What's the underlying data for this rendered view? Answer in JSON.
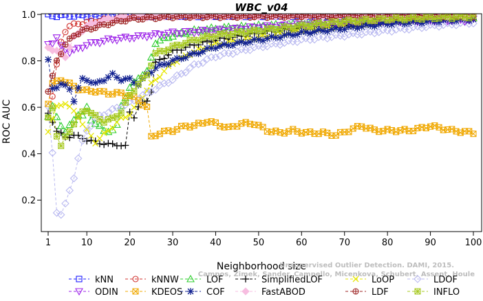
{
  "chart_data": {
    "type": "line",
    "title": "WBC_v04",
    "xlabel": "Neighborhood size",
    "ylabel": "ROC AUC",
    "xlim": [
      1,
      100
    ],
    "ylim": [
      0.1,
      1.0
    ],
    "xticks": [
      1,
      10,
      20,
      30,
      40,
      50,
      60,
      70,
      80,
      90,
      100
    ],
    "yticks": [
      0.2,
      0.4,
      0.6,
      0.8,
      1.0
    ],
    "ytick_labels": [
      "0.2",
      "0.4",
      "0.6",
      "0.8",
      "1.0"
    ],
    "grid": false,
    "legend_position": "bottom",
    "credit_lines": [
      "Campos, Zimek, Sander, Campello, Micenkova, Schubert, Assent, Houle",
      "Unsupervised Outlier Detection. DAMI, 2015."
    ],
    "series": [
      {
        "name": "kNN",
        "color": "#1a1aff",
        "marker": "square",
        "anchors": [
          [
            1,
            0.995
          ],
          [
            100,
            0.995
          ]
        ]
      },
      {
        "name": "kNNW",
        "color": "#d0312d",
        "marker": "circle",
        "anchors": [
          [
            1,
            0.56
          ],
          [
            2,
            0.65
          ],
          [
            3,
            0.78
          ],
          [
            4,
            0.88
          ],
          [
            5,
            0.93
          ],
          [
            6,
            0.95
          ],
          [
            8,
            0.96
          ],
          [
            10,
            0.965
          ],
          [
            15,
            0.98
          ],
          [
            20,
            0.99
          ],
          [
            30,
            0.995
          ],
          [
            100,
            0.995
          ]
        ]
      },
      {
        "name": "LOF",
        "color": "#2bcc2b",
        "marker": "triangle-up",
        "anchors": [
          [
            1,
            0.56
          ],
          [
            2,
            0.6
          ],
          [
            3,
            0.56
          ],
          [
            5,
            0.49
          ],
          [
            7,
            0.55
          ],
          [
            8,
            0.57
          ],
          [
            9,
            0.56
          ],
          [
            10,
            0.6
          ],
          [
            11,
            0.55
          ],
          [
            12,
            0.53
          ],
          [
            14,
            0.5
          ],
          [
            16,
            0.5
          ],
          [
            17,
            0.52
          ],
          [
            18,
            0.61
          ],
          [
            20,
            0.68
          ],
          [
            22,
            0.73
          ],
          [
            24,
            0.75
          ],
          [
            26,
            0.88
          ],
          [
            30,
            0.91
          ],
          [
            35,
            0.93
          ],
          [
            40,
            0.94
          ],
          [
            50,
            0.95
          ],
          [
            60,
            0.96
          ],
          [
            70,
            0.98
          ],
          [
            80,
            0.985
          ],
          [
            90,
            0.99
          ],
          [
            100,
            0.99
          ]
        ]
      },
      {
        "name": "SimplifiedLOF",
        "color": "#000000",
        "marker": "plus",
        "anchors": [
          [
            1,
            0.57
          ],
          [
            2,
            0.54
          ],
          [
            3,
            0.5
          ],
          [
            5,
            0.47
          ],
          [
            7,
            0.48
          ],
          [
            10,
            0.46
          ],
          [
            12,
            0.45
          ],
          [
            15,
            0.44
          ],
          [
            17,
            0.44
          ],
          [
            19,
            0.43
          ],
          [
            20,
            0.58
          ],
          [
            21,
            0.56
          ],
          [
            22,
            0.6
          ],
          [
            24,
            0.63
          ],
          [
            25,
            0.67
          ],
          [
            26,
            0.79
          ],
          [
            30,
            0.84
          ],
          [
            35,
            0.87
          ],
          [
            40,
            0.89
          ],
          [
            45,
            0.905
          ],
          [
            50,
            0.92
          ],
          [
            60,
            0.94
          ],
          [
            70,
            0.95
          ],
          [
            80,
            0.965
          ],
          [
            90,
            0.975
          ],
          [
            100,
            0.985
          ]
        ]
      },
      {
        "name": "LoOP",
        "color": "#e6e600",
        "marker": "cross",
        "anchors": [
          [
            1,
            0.5
          ],
          [
            3,
            0.6
          ],
          [
            5,
            0.62
          ],
          [
            8,
            0.56
          ],
          [
            10,
            0.5
          ],
          [
            12,
            0.45
          ],
          [
            15,
            0.5
          ],
          [
            18,
            0.55
          ],
          [
            20,
            0.57
          ],
          [
            22,
            0.62
          ],
          [
            25,
            0.7
          ],
          [
            30,
            0.79
          ],
          [
            35,
            0.84
          ],
          [
            40,
            0.87
          ],
          [
            50,
            0.9
          ],
          [
            60,
            0.93
          ],
          [
            70,
            0.95
          ],
          [
            80,
            0.97
          ],
          [
            90,
            0.98
          ],
          [
            100,
            0.985
          ]
        ]
      },
      {
        "name": "LDOF",
        "color": "#b8b8f0",
        "marker": "diamond",
        "anchors": [
          [
            1,
            0.6
          ],
          [
            2,
            0.4
          ],
          [
            3,
            0.15
          ],
          [
            4,
            0.14
          ],
          [
            5,
            0.18
          ],
          [
            6,
            0.24
          ],
          [
            7,
            0.3
          ],
          [
            8,
            0.38
          ],
          [
            9,
            0.45
          ],
          [
            10,
            0.5
          ],
          [
            12,
            0.55
          ],
          [
            15,
            0.58
          ],
          [
            20,
            0.62
          ],
          [
            25,
            0.67
          ],
          [
            30,
            0.72
          ],
          [
            35,
            0.78
          ],
          [
            40,
            0.82
          ],
          [
            50,
            0.86
          ],
          [
            60,
            0.89
          ],
          [
            70,
            0.91
          ],
          [
            80,
            0.93
          ],
          [
            90,
            0.95
          ],
          [
            100,
            0.965
          ]
        ]
      },
      {
        "name": "ODIN",
        "color": "#9b1fe8",
        "marker": "triangle-down",
        "anchors": [
          [
            1,
            0.87
          ],
          [
            2,
            0.88
          ],
          [
            3,
            0.9
          ],
          [
            4,
            0.86
          ],
          [
            6,
            0.84
          ],
          [
            8,
            0.85
          ],
          [
            10,
            0.87
          ],
          [
            15,
            0.89
          ],
          [
            20,
            0.9
          ],
          [
            25,
            0.91
          ],
          [
            30,
            0.92
          ],
          [
            40,
            0.93
          ],
          [
            50,
            0.945
          ],
          [
            60,
            0.955
          ],
          [
            70,
            0.965
          ],
          [
            80,
            0.97
          ],
          [
            90,
            0.975
          ],
          [
            100,
            0.975
          ]
        ]
      },
      {
        "name": "KDEOS",
        "color": "#f0a800",
        "marker": "square-cross",
        "anchors": [
          [
            1,
            0.62
          ],
          [
            2,
            0.7
          ],
          [
            4,
            0.72
          ],
          [
            6,
            0.7
          ],
          [
            8,
            0.68
          ],
          [
            10,
            0.67
          ],
          [
            12,
            0.67
          ],
          [
            15,
            0.66
          ],
          [
            18,
            0.66
          ],
          [
            20,
            0.65
          ],
          [
            22,
            0.63
          ],
          [
            24,
            0.6
          ],
          [
            25,
            0.47
          ],
          [
            27,
            0.49
          ],
          [
            30,
            0.5
          ],
          [
            33,
            0.52
          ],
          [
            35,
            0.52
          ],
          [
            38,
            0.54
          ],
          [
            40,
            0.53
          ],
          [
            43,
            0.51
          ],
          [
            46,
            0.53
          ],
          [
            49,
            0.53
          ],
          [
            52,
            0.5
          ],
          [
            55,
            0.49
          ],
          [
            58,
            0.5
          ],
          [
            61,
            0.49
          ],
          [
            65,
            0.49
          ],
          [
            68,
            0.48
          ],
          [
            71,
            0.5
          ],
          [
            74,
            0.52
          ],
          [
            77,
            0.5
          ],
          [
            80,
            0.5
          ],
          [
            85,
            0.5
          ],
          [
            88,
            0.51
          ],
          [
            90,
            0.52
          ],
          [
            95,
            0.5
          ],
          [
            100,
            0.49
          ]
        ]
      },
      {
        "name": "COF",
        "color": "#102090",
        "marker": "star",
        "anchors": [
          [
            1,
            0.8
          ],
          [
            2,
            0.68
          ],
          [
            4,
            0.7
          ],
          [
            6,
            0.68
          ],
          [
            7,
            0.63
          ],
          [
            8,
            0.68
          ],
          [
            9,
            0.72
          ],
          [
            10,
            0.72
          ],
          [
            12,
            0.7
          ],
          [
            14,
            0.72
          ],
          [
            16,
            0.74
          ],
          [
            18,
            0.72
          ],
          [
            20,
            0.72
          ],
          [
            22,
            0.7
          ],
          [
            24,
            0.74
          ],
          [
            26,
            0.77
          ],
          [
            30,
            0.8
          ],
          [
            35,
            0.83
          ],
          [
            40,
            0.86
          ],
          [
            50,
            0.89
          ],
          [
            60,
            0.92
          ],
          [
            70,
            0.94
          ],
          [
            80,
            0.96
          ],
          [
            90,
            0.97
          ],
          [
            100,
            0.98
          ]
        ]
      },
      {
        "name": "FastABOD",
        "color": "#f7bde0",
        "marker": "diamond-filled",
        "anchors": [
          [
            1,
            0.86
          ],
          [
            3,
            0.84
          ],
          [
            5,
            0.82
          ],
          [
            7,
            0.9
          ],
          [
            10,
            0.95
          ],
          [
            15,
            0.98
          ],
          [
            20,
            0.99
          ],
          [
            30,
            0.995
          ],
          [
            100,
            0.995
          ]
        ]
      },
      {
        "name": "LDF",
        "color": "#9c2020",
        "marker": "circle-plus",
        "anchors": [
          [
            1,
            0.67
          ],
          [
            2,
            0.73
          ],
          [
            3,
            0.8
          ],
          [
            5,
            0.87
          ],
          [
            7,
            0.91
          ],
          [
            9,
            0.93
          ],
          [
            11,
            0.94
          ],
          [
            13,
            0.95
          ],
          [
            15,
            0.96
          ],
          [
            20,
            0.98
          ],
          [
            30,
            0.99
          ],
          [
            100,
            0.995
          ]
        ]
      },
      {
        "name": "INFLO",
        "color": "#a6c81e",
        "marker": "square-star",
        "anchors": [
          [
            1,
            0.55
          ],
          [
            2,
            0.6
          ],
          [
            3,
            0.48
          ],
          [
            4,
            0.43
          ],
          [
            5,
            0.47
          ],
          [
            6,
            0.5
          ],
          [
            7,
            0.53
          ],
          [
            9,
            0.58
          ],
          [
            10,
            0.59
          ],
          [
            12,
            0.56
          ],
          [
            14,
            0.54
          ],
          [
            16,
            0.55
          ],
          [
            18,
            0.58
          ],
          [
            20,
            0.65
          ],
          [
            22,
            0.7
          ],
          [
            24,
            0.74
          ],
          [
            26,
            0.83
          ],
          [
            30,
            0.86
          ],
          [
            35,
            0.89
          ],
          [
            40,
            0.91
          ],
          [
            50,
            0.93
          ],
          [
            60,
            0.95
          ],
          [
            70,
            0.97
          ],
          [
            80,
            0.98
          ],
          [
            90,
            0.985
          ],
          [
            100,
            0.99
          ]
        ]
      }
    ]
  }
}
